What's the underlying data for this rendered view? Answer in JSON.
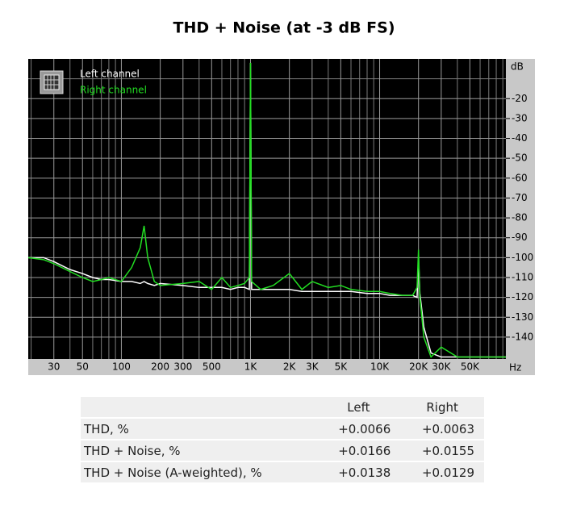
{
  "chart_data": {
    "type": "line",
    "title": "THD + Noise (at -3 dB FS)",
    "y_unit": "dB",
    "x_unit": "Hz",
    "xscale": "log",
    "xlim": [
      19,
      95000
    ],
    "ylim": [
      -151,
      0
    ],
    "xticks": [
      30,
      50,
      100,
      200,
      300,
      500,
      {
        "value": 1000,
        "label": "1K"
      },
      {
        "value": 2000,
        "label": "2K"
      },
      {
        "value": 3000,
        "label": "3K"
      },
      {
        "value": 5000,
        "label": "5K"
      },
      {
        "value": 10000,
        "label": "10K"
      },
      {
        "value": 20000,
        "label": "20K"
      },
      {
        "value": 30000,
        "label": "30K"
      },
      {
        "value": 50000,
        "label": "50K"
      }
    ],
    "x_gridlines": [
      20,
      40,
      60,
      70,
      80,
      90,
      400,
      600,
      700,
      800,
      900,
      4000,
      6000,
      7000,
      8000,
      9000,
      40000,
      60000,
      70000,
      80000,
      90000
    ],
    "yticks": [
      -20,
      -30,
      -40,
      -50,
      -60,
      -70,
      -80,
      -90,
      -100,
      -110,
      -120,
      -130,
      -140
    ],
    "y_gridlines": [
      -10
    ],
    "grid": true,
    "legend": "upper left",
    "x": [
      19,
      25,
      30,
      40,
      50,
      60,
      70,
      80,
      100,
      120,
      140,
      150,
      160,
      180,
      200,
      300,
      400,
      500,
      600,
      700,
      800,
      900,
      980,
      1000,
      1020,
      1200,
      1500,
      2000,
      2500,
      3000,
      4000,
      5000,
      6000,
      8000,
      10000,
      12000,
      15000,
      18000,
      19500,
      20000,
      20500,
      22000,
      25000,
      30000,
      40000,
      60000,
      95000
    ],
    "series": [
      {
        "name": "Left channel",
        "color": "#ffffff",
        "values": [
          -100,
          -100,
          -102,
          -106,
          -108,
          -110,
          -111,
          -111,
          -112,
          -112,
          -113,
          -112,
          -113,
          -114,
          -113,
          -114,
          -115,
          -115,
          -115,
          -116,
          -115,
          -115,
          -116,
          -2,
          -116,
          -116,
          -116,
          -116,
          -117,
          -117,
          -117,
          -117,
          -117,
          -118,
          -118,
          -119,
          -119,
          -119,
          -120,
          -100,
          -118,
          -135,
          -148,
          -150,
          -150,
          -150,
          -150
        ]
      },
      {
        "name": "Right channel",
        "color": "#22dd22",
        "values": [
          -100,
          -101,
          -103,
          -107,
          -110,
          -112,
          -111,
          -110,
          -112,
          -105,
          -95,
          -84,
          -100,
          -112,
          -114,
          -113,
          -112,
          -116,
          -110,
          -115,
          -114,
          -113,
          -110,
          -2,
          -112,
          -116,
          -114,
          -108,
          -116,
          -112,
          -115,
          -114,
          -116,
          -117,
          -117,
          -118,
          -119,
          -119,
          -115,
          -96,
          -120,
          -140,
          -150,
          -145,
          -150,
          -150,
          -150
        ]
      }
    ]
  },
  "table": {
    "columns": [
      "Left",
      "Right"
    ],
    "rows": [
      [
        "THD, %",
        "+0.0066",
        "+0.0063"
      ],
      [
        "THD + Noise, %",
        "+0.0166",
        "+0.0155"
      ],
      [
        "THD + Noise (A-weighted), %",
        "+0.0138",
        "+0.0129"
      ]
    ]
  }
}
